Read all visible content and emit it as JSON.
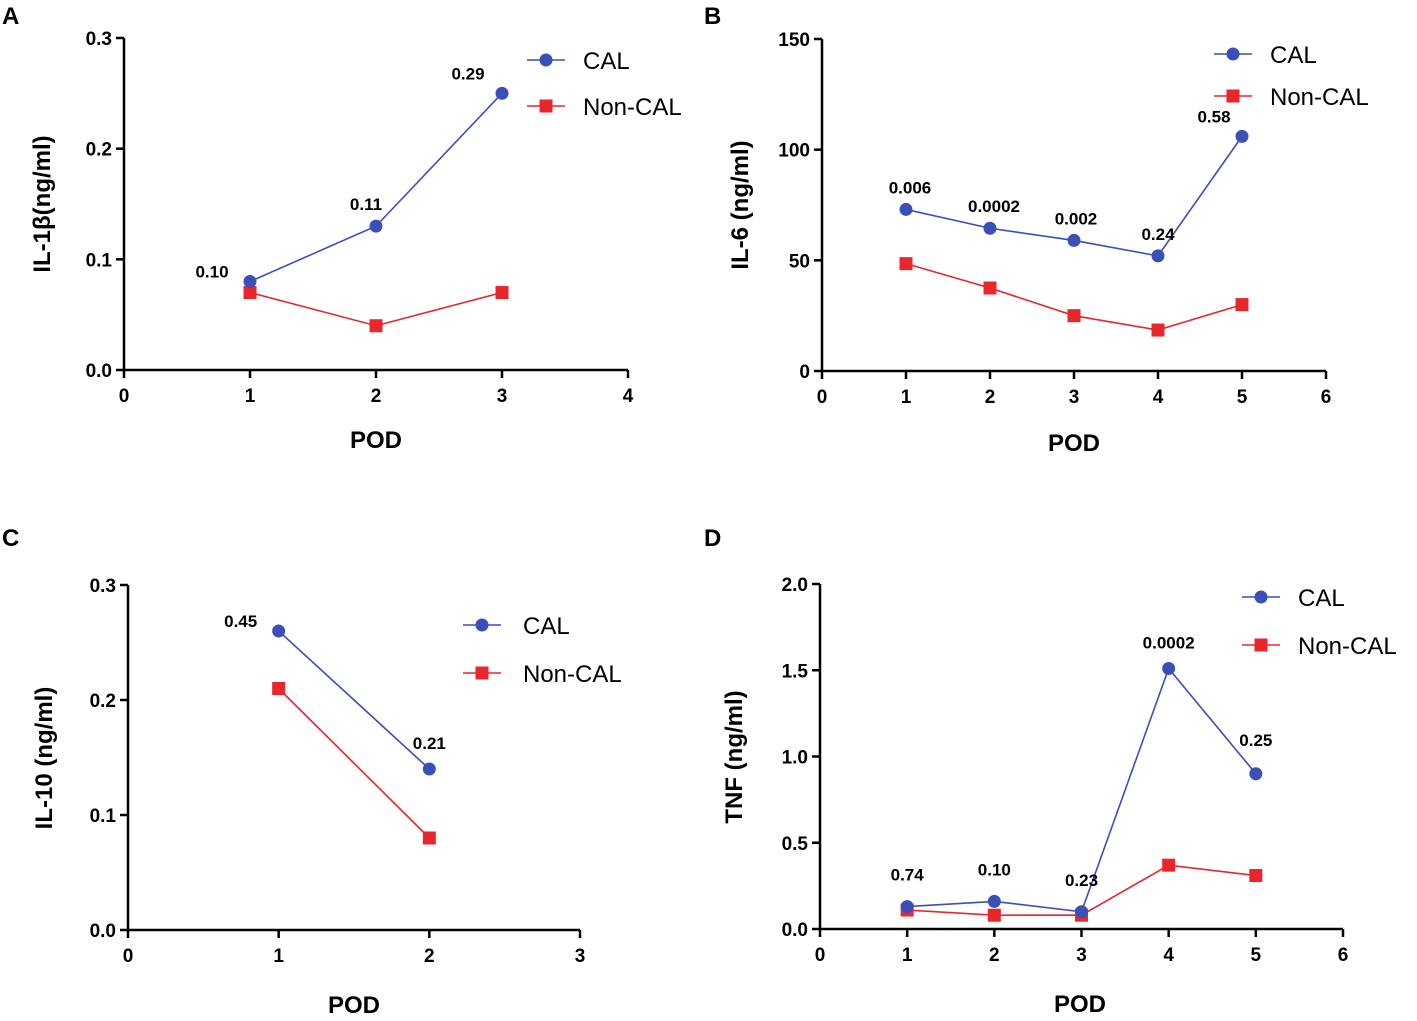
{
  "colors": {
    "cal": "#3b4fb8",
    "noncal": "#e8262b"
  },
  "chart_data": [
    {
      "type": "line",
      "panel": "A",
      "xlabel": "POD",
      "ylabel": "IL-1β(ng/ml)",
      "xlim": [
        0,
        4
      ],
      "ylim": [
        0,
        0.3
      ],
      "xticks": [
        "0",
        "1",
        "2",
        "3",
        "4"
      ],
      "yticks": [
        "0.0",
        "0.1",
        "0.2",
        "0.3"
      ],
      "legend": "top-right",
      "series": [
        {
          "name": "CAL",
          "marker": "circle",
          "x": [
            1,
            2,
            3
          ],
          "values": [
            0.08,
            0.13,
            0.25
          ]
        },
        {
          "name": "Non-CAL",
          "marker": "square",
          "x": [
            1,
            2,
            3
          ],
          "values": [
            0.07,
            0.04,
            0.07
          ]
        }
      ],
      "annotations": [
        {
          "text": "0.10",
          "x": 1,
          "y": 0.08
        },
        {
          "text": "0.11",
          "x": 2,
          "y": 0.13
        },
        {
          "text": "0.29",
          "x": 3,
          "y": 0.25
        }
      ]
    },
    {
      "type": "line",
      "panel": "B",
      "xlabel": "POD",
      "ylabel": "IL-6 (ng/ml)",
      "xlim": [
        0,
        6
      ],
      "ylim": [
        0,
        150
      ],
      "xticks": [
        "0",
        "1",
        "2",
        "3",
        "4",
        "5",
        "6"
      ],
      "yticks": [
        "0",
        "50",
        "100",
        "150"
      ],
      "legend": "top-right",
      "series": [
        {
          "name": "CAL",
          "marker": "circle",
          "x": [
            1,
            2,
            3,
            4,
            5
          ],
          "values": [
            73,
            64.5,
            59,
            52,
            106
          ]
        },
        {
          "name": "Non-CAL",
          "marker": "square",
          "x": [
            1,
            2,
            3,
            4,
            5
          ],
          "values": [
            48.5,
            37.5,
            25,
            18.5,
            30
          ]
        }
      ],
      "annotations": [
        {
          "text": "0.006",
          "x": 1,
          "y": 73
        },
        {
          "text": "0.0002",
          "x": 2,
          "y": 64.5
        },
        {
          "text": "0.002",
          "x": 3,
          "y": 59
        },
        {
          "text": "0.24",
          "x": 4,
          "y": 52
        },
        {
          "text": "0.58",
          "x": 5,
          "y": 106
        }
      ]
    },
    {
      "type": "line",
      "panel": "C",
      "xlabel": "POD",
      "ylabel": "IL-10 (ng/ml)",
      "xlim": [
        0,
        3
      ],
      "ylim": [
        0,
        0.3
      ],
      "xticks": [
        "0",
        "1",
        "2",
        "3"
      ],
      "yticks": [
        "0.0",
        "0.1",
        "0.2",
        "0.3"
      ],
      "legend": "top-right",
      "series": [
        {
          "name": "CAL",
          "marker": "circle",
          "x": [
            1,
            2
          ],
          "values": [
            0.26,
            0.14
          ]
        },
        {
          "name": "Non-CAL",
          "marker": "square",
          "x": [
            1,
            2
          ],
          "values": [
            0.21,
            0.08
          ]
        }
      ],
      "annotations": [
        {
          "text": "0.45",
          "x": 1,
          "y": 0.26
        },
        {
          "text": "0.21",
          "x": 2,
          "y": 0.14
        }
      ]
    },
    {
      "type": "line",
      "panel": "D",
      "xlabel": "POD",
      "ylabel": "TNF (ng/ml)",
      "xlim": [
        0,
        6
      ],
      "ylim": [
        0,
        2.0
      ],
      "xticks": [
        "0",
        "1",
        "2",
        "3",
        "4",
        "5",
        "6"
      ],
      "yticks": [
        "0.0",
        "0.5",
        "1.0",
        "1.5",
        "2.0"
      ],
      "legend": "top-right",
      "series": [
        {
          "name": "CAL",
          "marker": "circle",
          "x": [
            1,
            2,
            3,
            4,
            5
          ],
          "values": [
            0.13,
            0.16,
            0.1,
            1.51,
            0.9
          ]
        },
        {
          "name": "Non-CAL",
          "marker": "square",
          "x": [
            1,
            2,
            3,
            4,
            5
          ],
          "values": [
            0.11,
            0.08,
            0.08,
            0.37,
            0.31
          ]
        }
      ],
      "annotations": [
        {
          "text": "0.74",
          "x": 1,
          "y": 0.13
        },
        {
          "text": "0.10",
          "x": 2,
          "y": 0.16
        },
        {
          "text": "0.23",
          "x": 3,
          "y": 0.1
        },
        {
          "text": "0.0002",
          "x": 4,
          "y": 1.51
        },
        {
          "text": "0.25",
          "x": 5,
          "y": 0.9
        }
      ]
    }
  ]
}
